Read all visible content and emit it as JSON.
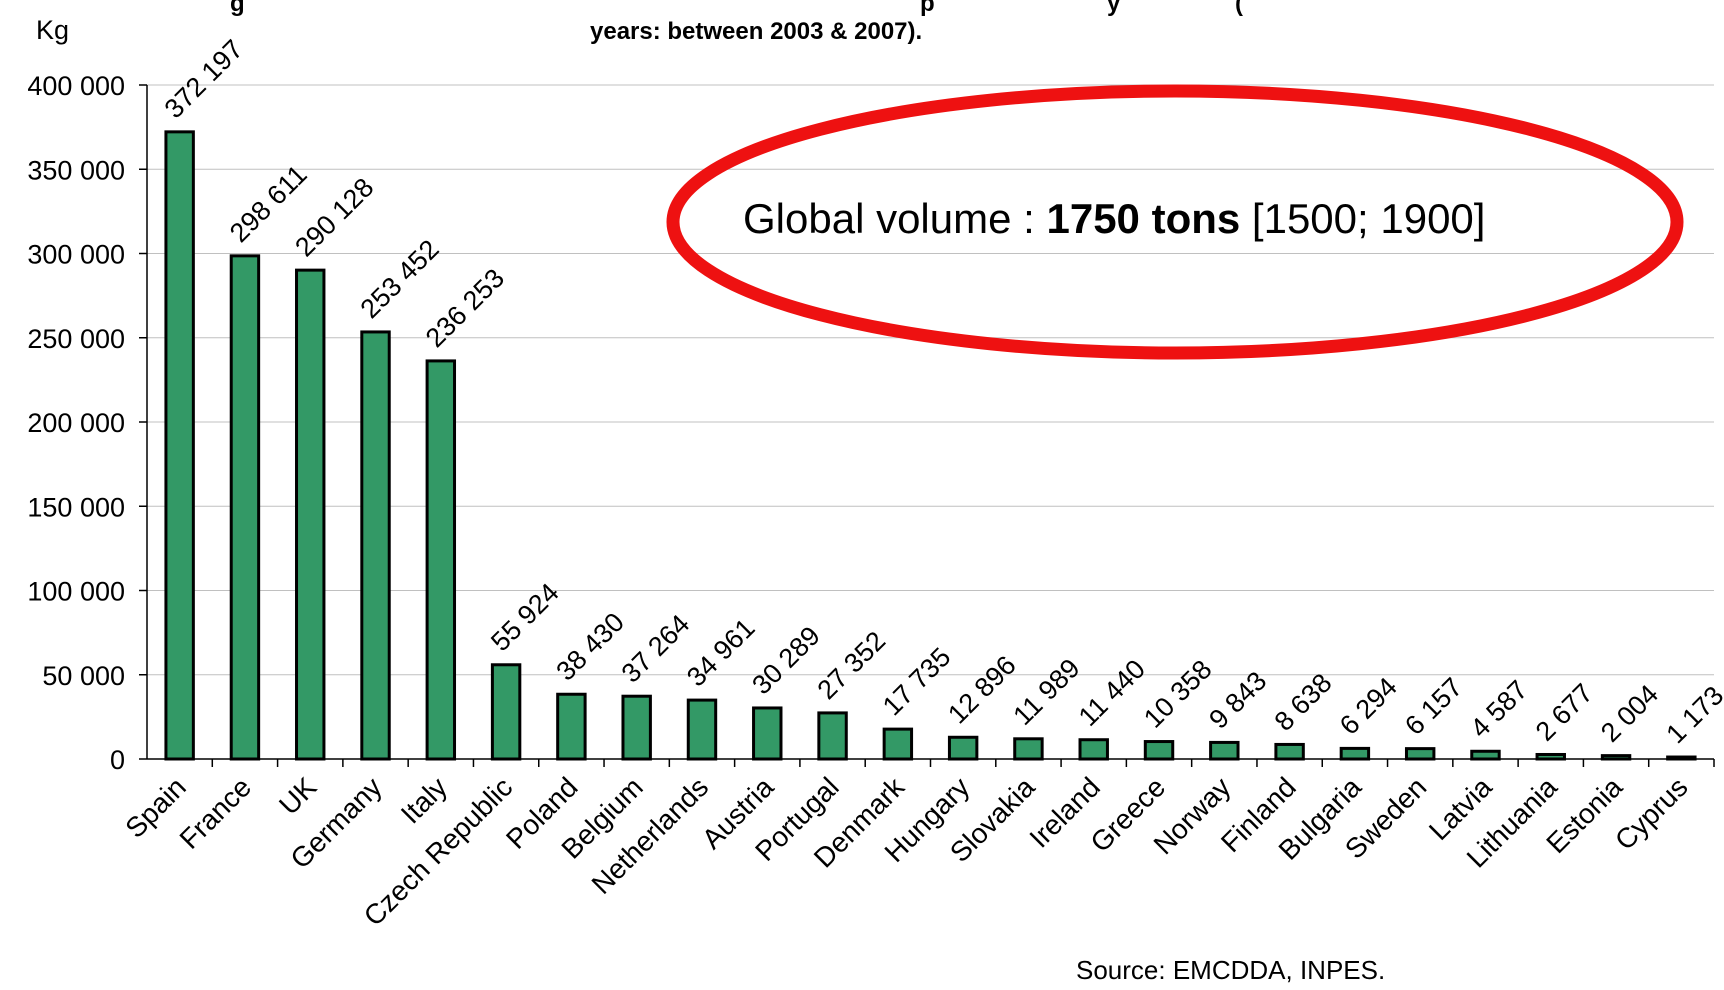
{
  "chart_data": {
    "type": "bar",
    "title_line1_visible": "g",
    "title_line1_visible_right": "p",
    "title_line1_visible_right2": "y",
    "title_line1_visible_right3": "(",
    "title_line2": "years: between 2003 & 2007).",
    "ylabel": "Kg",
    "ylim": [
      0,
      400000
    ],
    "yticks": [
      "0",
      "50 000",
      "100 000",
      "150 000",
      "200 000",
      "250 000",
      "300 000",
      "350 000",
      "400 000"
    ],
    "ytick_values": [
      0,
      50000,
      100000,
      150000,
      200000,
      250000,
      300000,
      350000,
      400000
    ],
    "grid": true,
    "categories": [
      "Spain",
      "France",
      "UK",
      "Germany",
      "Italy",
      "Czech Republic",
      "Poland",
      "Belgium",
      "Netherlands",
      "Austria",
      "Portugal",
      "Denmark",
      "Hungary",
      "Slovakia",
      "Ireland",
      "Greece",
      "Norway",
      "Finland",
      "Bulgaria",
      "Sweden",
      "Latvia",
      "Lithuania",
      "Estonia",
      "Cyprus"
    ],
    "values": [
      372197,
      298611,
      290128,
      253452,
      236253,
      55924,
      38430,
      37264,
      34961,
      30289,
      27352,
      17735,
      12896,
      11989,
      11440,
      10358,
      9843,
      8638,
      6294,
      6157,
      4587,
      2677,
      2004,
      1173
    ],
    "value_labels": [
      "372 197",
      "298 611",
      "290 128",
      "253 452",
      "236 253",
      "55 924",
      "38 430",
      "37 264",
      "34 961",
      "30 289",
      "27 352",
      "17 735",
      "12 896",
      "11 989",
      "11 440",
      "10 358",
      "9 843",
      "8 638",
      "6 294",
      "6 157",
      "4 587",
      "2 677",
      "2 004",
      "1 173"
    ],
    "colors": {
      "bar_fill": "#339966",
      "bar_stroke": "#000000",
      "grid": "#c0c0c0",
      "callout_ellipse": "#ee1111"
    }
  },
  "callout": {
    "prefix": "Global volume : ",
    "bold": "1750 tons",
    "suffix": " [1500; 1900]"
  },
  "source": "Source: EMCDDA, INPES."
}
